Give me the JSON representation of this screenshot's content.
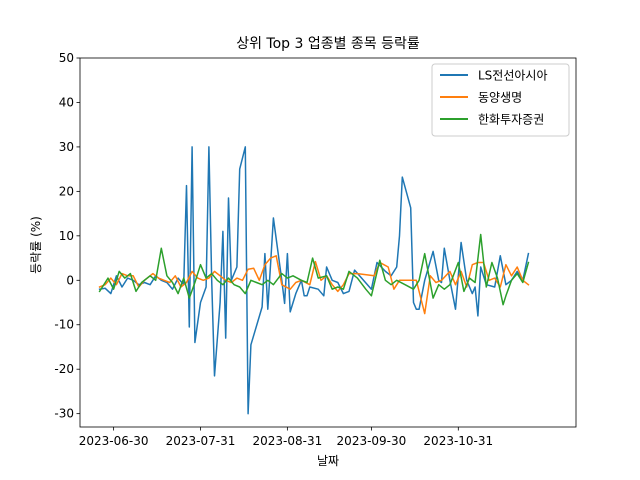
{
  "chart_data": {
    "type": "line",
    "title": "상위 Top 3 업종별 종목 등락률",
    "xlabel": "날짜",
    "ylabel": "등락률 (%)",
    "ylim": [
      -33,
      50
    ],
    "yticks": [
      -30,
      -20,
      -10,
      0,
      10,
      20,
      30,
      40,
      50
    ],
    "xlim": [
      "2023-06-18",
      "2023-12-12"
    ],
    "xticks": [
      "2023-06-30",
      "2023-07-31",
      "2023-08-31",
      "2023-09-30",
      "2023-10-31"
    ],
    "grid": false,
    "legend_position": "top-right",
    "series": [
      {
        "name": "LS전선아시아",
        "color": "#1f77b4",
        "points": [
          [
            "2023-06-25",
            -2
          ],
          [
            "2023-06-27",
            -1.8
          ],
          [
            "2023-06-29",
            -3
          ],
          [
            "2023-07-01",
            1
          ],
          [
            "2023-07-03",
            -1.5
          ],
          [
            "2023-07-05",
            0.5
          ],
          [
            "2023-07-07",
            0
          ],
          [
            "2023-07-09",
            -1
          ],
          [
            "2023-07-11",
            -0.5
          ],
          [
            "2023-07-13",
            -1
          ],
          [
            "2023-07-15",
            1
          ],
          [
            "2023-07-17",
            0
          ],
          [
            "2023-07-19",
            -0.5
          ],
          [
            "2023-07-21",
            -2
          ],
          [
            "2023-07-23",
            0.5
          ],
          [
            "2023-07-25",
            -1
          ],
          [
            "2023-07-26",
            21.3
          ],
          [
            "2023-07-27",
            -10.5
          ],
          [
            "2023-07-28",
            30
          ],
          [
            "2023-07-29",
            -14
          ],
          [
            "2023-07-31",
            -5
          ],
          [
            "2023-08-02",
            -1.5
          ],
          [
            "2023-08-03",
            30
          ],
          [
            "2023-08-04",
            0
          ],
          [
            "2023-08-05",
            -21.5
          ],
          [
            "2023-08-07",
            -5
          ],
          [
            "2023-08-08",
            11
          ],
          [
            "2023-08-09",
            -13
          ],
          [
            "2023-08-10",
            18.5
          ],
          [
            "2023-08-11",
            0
          ],
          [
            "2023-08-13",
            3
          ],
          [
            "2023-08-14",
            25
          ],
          [
            "2023-08-16",
            30
          ],
          [
            "2023-08-17",
            -30
          ],
          [
            "2023-08-18",
            -14.5
          ],
          [
            "2023-08-22",
            -6
          ],
          [
            "2023-08-23",
            6
          ],
          [
            "2023-08-24",
            -6.5
          ],
          [
            "2023-08-26",
            14
          ],
          [
            "2023-08-29",
            0
          ],
          [
            "2023-08-30",
            -5.2
          ],
          [
            "2023-08-31",
            6
          ],
          [
            "2023-09-01",
            -7.1
          ],
          [
            "2023-09-03",
            -3
          ],
          [
            "2023-09-05",
            0
          ],
          [
            "2023-09-06",
            -3.5
          ],
          [
            "2023-09-07",
            -3.5
          ],
          [
            "2023-09-08",
            -1.5
          ],
          [
            "2023-09-11",
            -2
          ],
          [
            "2023-09-13",
            -3.5
          ],
          [
            "2023-09-14",
            3
          ],
          [
            "2023-09-16",
            0
          ],
          [
            "2023-09-18",
            -0.5
          ],
          [
            "2023-09-20",
            -3
          ],
          [
            "2023-09-22",
            -2.5
          ],
          [
            "2023-09-24",
            2.3
          ],
          [
            "2023-09-30",
            -2
          ],
          [
            "2023-10-02",
            4
          ],
          [
            "2023-10-05",
            2
          ],
          [
            "2023-10-07",
            1
          ],
          [
            "2023-10-09",
            3
          ],
          [
            "2023-10-10",
            10
          ],
          [
            "2023-10-11",
            23.2
          ],
          [
            "2023-10-14",
            16.3
          ],
          [
            "2023-10-15",
            -5
          ],
          [
            "2023-10-16",
            -6.5
          ],
          [
            "2023-10-17",
            -6.5
          ],
          [
            "2023-10-19",
            0
          ],
          [
            "2023-10-22",
            6.5
          ],
          [
            "2023-10-24",
            0
          ],
          [
            "2023-10-25",
            -0.5
          ],
          [
            "2023-10-26",
            7.2
          ],
          [
            "2023-10-28",
            0
          ],
          [
            "2023-10-30",
            -6.5
          ],
          [
            "2023-11-01",
            8.5
          ],
          [
            "2023-11-03",
            0
          ],
          [
            "2023-11-05",
            -3
          ],
          [
            "2023-11-06",
            -1.5
          ],
          [
            "2023-11-07",
            -8
          ],
          [
            "2023-11-08",
            3
          ],
          [
            "2023-11-10",
            -1
          ],
          [
            "2023-11-13",
            -1.5
          ],
          [
            "2023-11-15",
            5.5
          ],
          [
            "2023-11-17",
            -1
          ],
          [
            "2023-11-19",
            0
          ],
          [
            "2023-11-21",
            2
          ],
          [
            "2023-11-23",
            0
          ],
          [
            "2023-11-25",
            6
          ]
        ]
      },
      {
        "name": "동양생명",
        "color": "#ff7f0e",
        "points": [
          [
            "2023-06-25",
            -1.5
          ],
          [
            "2023-06-27",
            -1
          ],
          [
            "2023-06-29",
            0.5
          ],
          [
            "2023-07-01",
            -1
          ],
          [
            "2023-07-03",
            1.5
          ],
          [
            "2023-07-05",
            1
          ],
          [
            "2023-07-07",
            1
          ],
          [
            "2023-07-09",
            -1.5
          ],
          [
            "2023-07-11",
            0
          ],
          [
            "2023-07-14",
            1.5
          ],
          [
            "2023-07-16",
            0.5
          ],
          [
            "2023-07-18",
            0
          ],
          [
            "2023-07-20",
            -0.5
          ],
          [
            "2023-07-22",
            1
          ],
          [
            "2023-07-24",
            -1.5
          ],
          [
            "2023-07-26",
            -0.5
          ],
          [
            "2023-07-28",
            2
          ],
          [
            "2023-07-30",
            0.5
          ],
          [
            "2023-08-01",
            0
          ],
          [
            "2023-08-03",
            0.5
          ],
          [
            "2023-08-05",
            2
          ],
          [
            "2023-08-07",
            1
          ],
          [
            "2023-08-09",
            0
          ],
          [
            "2023-08-11",
            -0.5
          ],
          [
            "2023-08-13",
            0.5
          ],
          [
            "2023-08-15",
            0
          ],
          [
            "2023-08-17",
            2.5
          ],
          [
            "2023-08-19",
            2.7
          ],
          [
            "2023-08-21",
            0
          ],
          [
            "2023-08-23",
            3.5
          ],
          [
            "2023-08-25",
            5
          ],
          [
            "2023-08-27",
            5.5
          ],
          [
            "2023-08-29",
            -1
          ],
          [
            "2023-09-01",
            -2
          ],
          [
            "2023-09-03",
            -0.5
          ],
          [
            "2023-09-05",
            0
          ],
          [
            "2023-09-08",
            -1
          ],
          [
            "2023-09-10",
            4.2
          ],
          [
            "2023-09-12",
            0
          ],
          [
            "2023-09-14",
            1
          ],
          [
            "2023-09-16",
            -1
          ],
          [
            "2023-09-18",
            -2.5
          ],
          [
            "2023-09-20",
            -1
          ],
          [
            "2023-09-22",
            1.5
          ],
          [
            "2023-09-25",
            1.5
          ],
          [
            "2023-10-01",
            1
          ],
          [
            "2023-10-03",
            4
          ],
          [
            "2023-10-06",
            3
          ],
          [
            "2023-10-08",
            -2
          ],
          [
            "2023-10-10",
            0
          ],
          [
            "2023-10-13",
            0
          ],
          [
            "2023-10-16",
            0
          ],
          [
            "2023-10-18",
            -5
          ],
          [
            "2023-10-19",
            -7.5
          ],
          [
            "2023-10-21",
            1
          ],
          [
            "2023-10-23",
            -0.5
          ],
          [
            "2023-10-25",
            0
          ],
          [
            "2023-10-28",
            2
          ],
          [
            "2023-10-30",
            -1
          ],
          [
            "2023-11-01",
            2
          ],
          [
            "2023-11-03",
            -1.5
          ],
          [
            "2023-11-05",
            3.5
          ],
          [
            "2023-11-07",
            4
          ],
          [
            "2023-11-09",
            4
          ],
          [
            "2023-11-11",
            0
          ],
          [
            "2023-11-13",
            0.5
          ],
          [
            "2023-11-15",
            -1.5
          ],
          [
            "2023-11-17",
            3.5
          ],
          [
            "2023-11-19",
            1
          ],
          [
            "2023-11-21",
            3
          ],
          [
            "2023-11-23",
            0
          ],
          [
            "2023-11-25",
            -1
          ]
        ]
      },
      {
        "name": "한화투자증권",
        "color": "#2ca02c",
        "points": [
          [
            "2023-06-25",
            -2.5
          ],
          [
            "2023-06-28",
            0.5
          ],
          [
            "2023-06-30",
            -2
          ],
          [
            "2023-07-02",
            2
          ],
          [
            "2023-07-04",
            0.5
          ],
          [
            "2023-07-06",
            1.5
          ],
          [
            "2023-07-08",
            -2.5
          ],
          [
            "2023-07-10",
            -0.5
          ],
          [
            "2023-07-13",
            1
          ],
          [
            "2023-07-15",
            0
          ],
          [
            "2023-07-17",
            7.2
          ],
          [
            "2023-07-19",
            1
          ],
          [
            "2023-07-21",
            -0.5
          ],
          [
            "2023-07-23",
            -3
          ],
          [
            "2023-07-25",
            0.5
          ],
          [
            "2023-07-27",
            -4
          ],
          [
            "2023-07-29",
            -0.5
          ],
          [
            "2023-07-31",
            3.5
          ],
          [
            "2023-08-02",
            0.5
          ],
          [
            "2023-08-04",
            1.5
          ],
          [
            "2023-08-06",
            0
          ],
          [
            "2023-08-08",
            -1
          ],
          [
            "2023-08-10",
            0.5
          ],
          [
            "2023-08-12",
            -1
          ],
          [
            "2023-08-14",
            -1.5
          ],
          [
            "2023-08-16",
            -3
          ],
          [
            "2023-08-18",
            0
          ],
          [
            "2023-08-20",
            -0.5
          ],
          [
            "2023-08-22",
            -1
          ],
          [
            "2023-08-24",
            0
          ],
          [
            "2023-08-26",
            -1
          ],
          [
            "2023-08-29",
            1.5
          ],
          [
            "2023-08-31",
            0.5
          ],
          [
            "2023-09-02",
            1
          ],
          [
            "2023-09-05",
            0
          ],
          [
            "2023-09-07",
            -0.5
          ],
          [
            "2023-09-09",
            5
          ],
          [
            "2023-09-11",
            0.5
          ],
          [
            "2023-09-14",
            1
          ],
          [
            "2023-09-16",
            -2
          ],
          [
            "2023-09-18",
            -1.5
          ],
          [
            "2023-09-20",
            -2
          ],
          [
            "2023-09-22",
            2
          ],
          [
            "2023-09-25",
            0.5
          ],
          [
            "2023-09-28",
            -2
          ],
          [
            "2023-09-30",
            -3.5
          ],
          [
            "2023-10-03",
            4.5
          ],
          [
            "2023-10-05",
            0
          ],
          [
            "2023-10-07",
            -1
          ],
          [
            "2023-10-09",
            0
          ],
          [
            "2023-10-12",
            -1
          ],
          [
            "2023-10-15",
            -2
          ],
          [
            "2023-10-17",
            0
          ],
          [
            "2023-10-19",
            6
          ],
          [
            "2023-10-22",
            -4
          ],
          [
            "2023-10-24",
            -1
          ],
          [
            "2023-10-26",
            -2
          ],
          [
            "2023-10-28",
            -1
          ],
          [
            "2023-10-31",
            4
          ],
          [
            "2023-11-02",
            -2.5
          ],
          [
            "2023-11-04",
            0.5
          ],
          [
            "2023-11-06",
            -0.5
          ],
          [
            "2023-11-08",
            10.3
          ],
          [
            "2023-11-10",
            -1.5
          ],
          [
            "2023-11-12",
            4
          ],
          [
            "2023-11-14",
            0.5
          ],
          [
            "2023-11-16",
            -5.5
          ],
          [
            "2023-11-17",
            -3.5
          ],
          [
            "2023-11-19",
            0
          ],
          [
            "2023-11-21",
            1.5
          ],
          [
            "2023-11-23",
            -0.5
          ],
          [
            "2023-11-25",
            4
          ]
        ]
      }
    ]
  }
}
